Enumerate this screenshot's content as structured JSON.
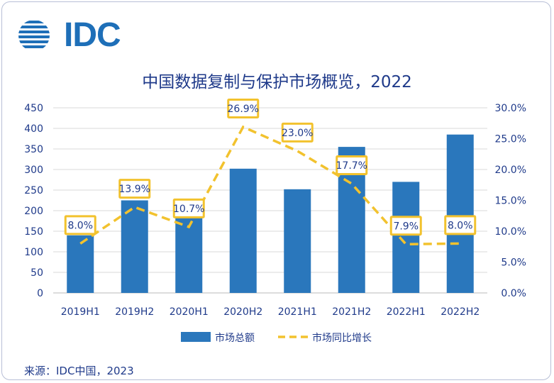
{
  "logo": {
    "text": "IDC"
  },
  "chart_data": {
    "type": "bar",
    "title": "中国数据复制与保护市场概览，2022",
    "categories": [
      "2019H1",
      "2019H2",
      "2020H1",
      "2020H2",
      "2021H1",
      "2021H2",
      "2022H1",
      "2022H2"
    ],
    "series": [
      {
        "name": "市场总额",
        "type": "bar",
        "axis": "left",
        "color": "#2a77bc",
        "values": [
          140,
          225,
          185,
          302,
          252,
          355,
          270,
          385
        ]
      },
      {
        "name": "市场同比增长",
        "type": "line",
        "axis": "right",
        "color": "#f2c22e",
        "style": "dashed",
        "values": [
          8.0,
          13.9,
          10.7,
          26.9,
          23.0,
          17.7,
          7.9,
          8.0
        ],
        "labels": [
          "8.0%",
          "13.9%",
          "10.7%",
          "26.9%",
          "23.0%",
          "17.7%",
          "7.9%",
          "8.0%"
        ]
      }
    ],
    "yleft": {
      "ylim": [
        0,
        450
      ],
      "ticks": [
        0,
        50,
        100,
        150,
        200,
        250,
        300,
        350,
        400,
        450
      ],
      "tick_labels": [
        "0",
        "50",
        "100",
        "150",
        "200",
        "250",
        "300",
        "350",
        "400",
        "450"
      ]
    },
    "yright": {
      "ylim": [
        0,
        30
      ],
      "ticks": [
        0,
        5,
        10,
        15,
        20,
        25,
        30
      ],
      "tick_labels": [
        "0.0%",
        "5.0%",
        "10.0%",
        "15.0%",
        "20.0%",
        "25.0%",
        "30.0%"
      ]
    },
    "grid": true,
    "legend": {
      "placement": "bottom-center",
      "entries": [
        "市场总额",
        "市场同比增长"
      ]
    }
  },
  "source": "来源：IDC中国，2023"
}
